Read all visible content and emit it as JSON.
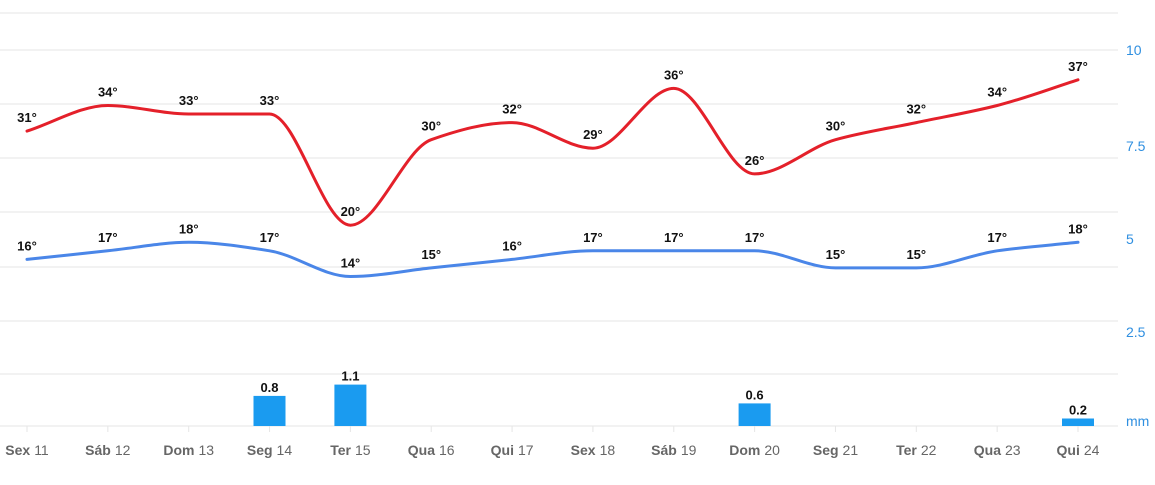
{
  "chart_data": {
    "type": "line",
    "categories": [
      {
        "day": "Sex",
        "num": "11"
      },
      {
        "day": "Sáb",
        "num": "12"
      },
      {
        "day": "Dom",
        "num": "13"
      },
      {
        "day": "Seg",
        "num": "14"
      },
      {
        "day": "Ter",
        "num": "15"
      },
      {
        "day": "Qua",
        "num": "16"
      },
      {
        "day": "Qui",
        "num": "17"
      },
      {
        "day": "Sex",
        "num": "18"
      },
      {
        "day": "Sáb",
        "num": "19"
      },
      {
        "day": "Dom",
        "num": "20"
      },
      {
        "day": "Seg",
        "num": "21"
      },
      {
        "day": "Ter",
        "num": "22"
      },
      {
        "day": "Qua",
        "num": "23"
      },
      {
        "day": "Qui",
        "num": "24"
      }
    ],
    "series": [
      {
        "color": "#e4202a",
        "values": [
          31,
          34,
          33,
          33,
          20,
          30,
          32,
          29,
          36,
          26,
          30,
          32,
          34,
          37
        ]
      },
      {
        "color": "#4a86e8",
        "values": [
          16,
          17,
          18,
          17,
          14,
          15,
          16,
          17,
          17,
          17,
          15,
          15,
          17,
          18
        ]
      }
    ],
    "unit_suffix": "°",
    "precipitation": {
      "type": "bar",
      "color": "#1a9bf0",
      "values": [
        null,
        null,
        null,
        0.8,
        1.1,
        null,
        null,
        null,
        null,
        0.6,
        null,
        null,
        null,
        0.2
      ],
      "labels": [
        "",
        "",
        "",
        "0.8",
        "1.1",
        "",
        "",
        "",
        "",
        "0.6",
        "",
        "",
        "",
        "0.2"
      ]
    },
    "y_axis_right": {
      "ticks": [
        "10",
        "7.5",
        "5",
        "2.5"
      ],
      "unit": "mm",
      "color": "#2f8fe0"
    },
    "grid": true
  }
}
